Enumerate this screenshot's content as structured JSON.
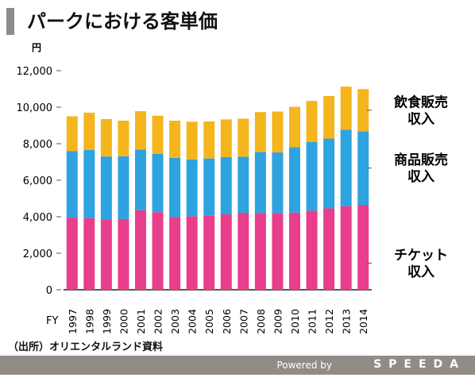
{
  "title": "パークにおける客単価",
  "source": "（出所）オリエンタルランド資料",
  "footer": {
    "powered": "Powered by",
    "brand": "SPEEDA"
  },
  "chart_data": {
    "type": "bar",
    "stacked": true,
    "ylabel": "円",
    "xlabel": "FY",
    "ylim": [
      0,
      12000
    ],
    "yticks": [
      "0",
      "2,000",
      "4,000",
      "6,000",
      "8,000",
      "10,000",
      "12,000"
    ],
    "categories": [
      "1997",
      "1998",
      "1999",
      "2000",
      "2001",
      "2002",
      "2003",
      "2004",
      "2005",
      "2006",
      "2007",
      "2008",
      "2009",
      "2010",
      "2011",
      "2012",
      "2013",
      "2014"
    ],
    "series": [
      {
        "name": "チケット収入",
        "label_lines": [
          "チケット",
          "収入"
        ],
        "color": "#e83e8c",
        "values": [
          3950,
          3920,
          3850,
          3880,
          4360,
          4250,
          3980,
          4030,
          4050,
          4130,
          4220,
          4210,
          4210,
          4230,
          4330,
          4460,
          4580,
          4650
        ]
      },
      {
        "name": "商品販売収入",
        "label_lines": [
          "商品販売",
          "収入"
        ],
        "color": "#2da3e0",
        "values": [
          3650,
          3730,
          3450,
          3430,
          3320,
          3200,
          3240,
          3110,
          3140,
          3130,
          3070,
          3340,
          3310,
          3580,
          3760,
          3820,
          4180,
          4030
        ]
      },
      {
        "name": "飲食販売収入",
        "label_lines": [
          "飲食販売",
          "収入"
        ],
        "color": "#f5b51d",
        "values": [
          1900,
          2050,
          2050,
          1950,
          2100,
          2080,
          2040,
          2060,
          2030,
          2070,
          2080,
          2180,
          2240,
          2210,
          2250,
          2330,
          2370,
          2310
        ]
      }
    ],
    "grid": false,
    "legend": "right"
  }
}
